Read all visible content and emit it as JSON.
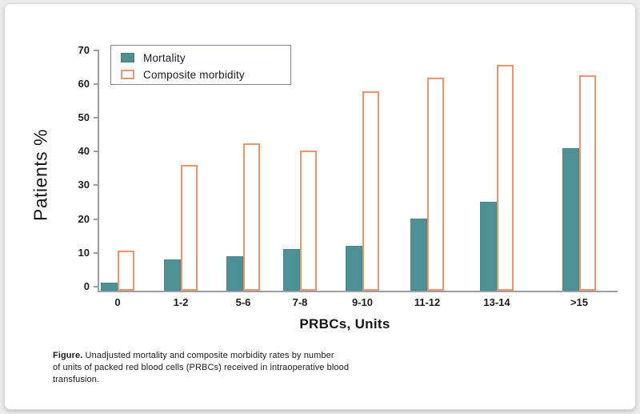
{
  "chart_data": {
    "type": "bar",
    "title": "",
    "categories": [
      "0",
      "1-2",
      "5-6",
      "7-8",
      "9-10",
      "11-12",
      "13-14",
      ">15"
    ],
    "series": [
      {
        "name": "Mortality",
        "style": "filled",
        "color": "#4e9194",
        "values": [
          1.1,
          8.0,
          9.0,
          11.2,
          12.1,
          20.2,
          25.1,
          41.0
        ]
      },
      {
        "name": "Composite morbidity",
        "style": "outlined",
        "color": "#f0956a",
        "values": [
          10.7,
          36.1,
          42.5,
          40.2,
          57.8,
          61.9,
          65.7,
          62.6
        ]
      }
    ],
    "xlabel": "PRBCs, Units",
    "ylabel": "Patients %",
    "ylim": [
      0,
      70
    ],
    "yticks": [
      0,
      10,
      20,
      30,
      40,
      50,
      60,
      70
    ],
    "grid": false,
    "legend_position": "top-left"
  },
  "caption": {
    "label": "Figure.",
    "line1": "Unadjusted mortality and composite morbidity rates by number",
    "line2": "of units of packed red blood cells (PRBCs) received in intraoperative blood",
    "line3": "transfusion."
  },
  "colors": {
    "mortality_fill": "#4e9194",
    "morbidity_outline": "#f0956a",
    "axis": "#99a0a5",
    "card_background": "#ffffff",
    "page_background": "#ececec"
  }
}
